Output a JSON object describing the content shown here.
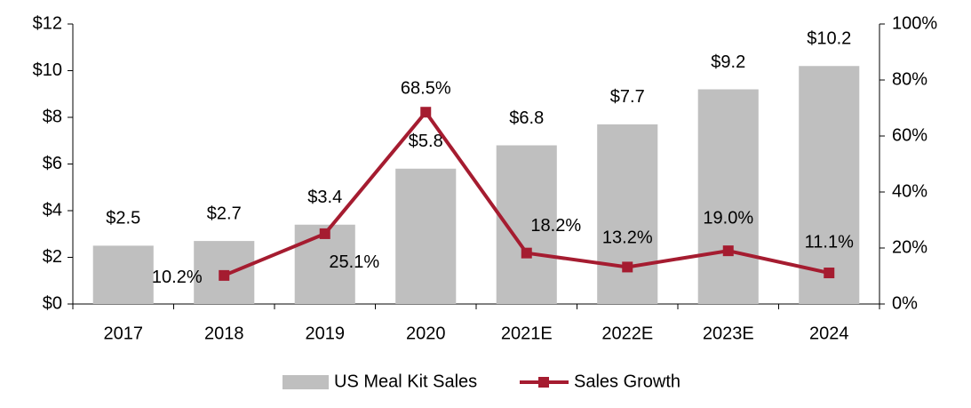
{
  "chart_data": {
    "type": "bar",
    "categories": [
      "2017",
      "2018",
      "2019",
      "2020",
      "2021E",
      "2022E",
      "2023E",
      "2024"
    ],
    "series": [
      {
        "name": "US Meal Kit Sales",
        "type": "bar",
        "color": "#bfbfbf",
        "values": [
          2.5,
          2.7,
          3.4,
          5.8,
          6.8,
          7.7,
          9.2,
          10.2
        ],
        "value_labels": [
          "$2.5",
          "$2.7",
          "$3.4",
          "$5.8",
          "$6.8",
          "$7.7",
          "$9.2",
          "$10.2"
        ]
      },
      {
        "name": "Sales Growth",
        "type": "line",
        "axis": "y2",
        "color": "#a51c30",
        "values": [
          null,
          10.2,
          25.1,
          68.5,
          18.2,
          13.2,
          19.0,
          11.1
        ],
        "value_labels": [
          null,
          "10.2%",
          "25.1%",
          "68.5%",
          "18.2%",
          "13.2%",
          "19.0%",
          "11.1%"
        ]
      }
    ],
    "ylim": [
      0,
      12
    ],
    "yticks": [
      {
        "value": 0,
        "label": "$0"
      },
      {
        "value": 2,
        "label": "$2"
      },
      {
        "value": 4,
        "label": "$4"
      },
      {
        "value": 6,
        "label": "$6"
      },
      {
        "value": 8,
        "label": "$8"
      },
      {
        "value": 10,
        "label": "$10"
      },
      {
        "value": 12,
        "label": "$12"
      }
    ],
    "y2lim": [
      0,
      100
    ],
    "y2ticks": [
      {
        "value": 0,
        "label": "0%"
      },
      {
        "value": 20,
        "label": "20%"
      },
      {
        "value": 40,
        "label": "40%"
      },
      {
        "value": 60,
        "label": "60%"
      },
      {
        "value": 80,
        "label": "80%"
      },
      {
        "value": 100,
        "label": "100%"
      }
    ],
    "grid": false,
    "legend": "bottom"
  }
}
